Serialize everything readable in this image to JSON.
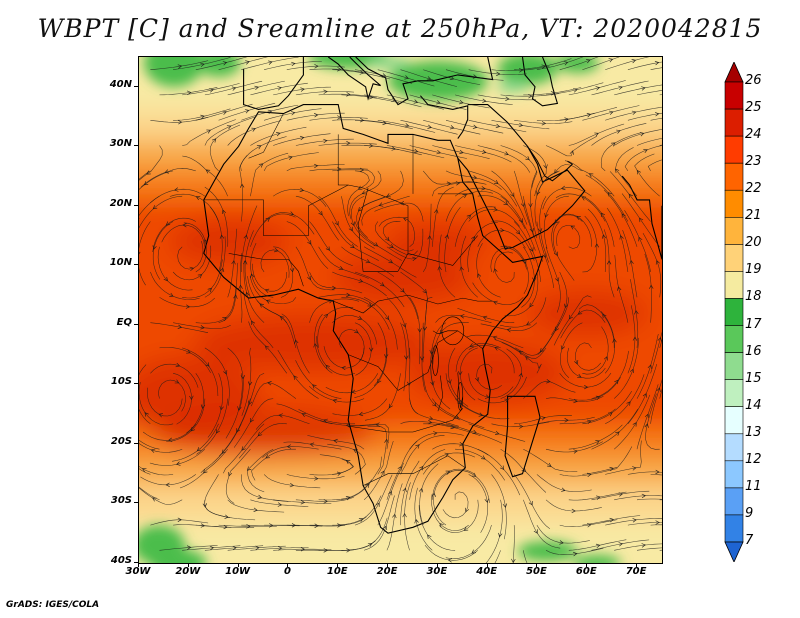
{
  "title": "WBPT [C] and Sreamline at 250hPa, VT: 2020042815",
  "footer": "GrADS: IGES/COLA",
  "axes": {
    "lat_labels": [
      "40N",
      "30N",
      "20N",
      "10N",
      "EQ",
      "10S",
      "20S",
      "30S",
      "40S"
    ],
    "lon_labels": [
      "30W",
      "20W",
      "10W",
      "0",
      "10E",
      "20E",
      "30E",
      "40E",
      "50E",
      "60E",
      "70E"
    ],
    "lat_range": [
      -40,
      45
    ],
    "lon_range": [
      -30,
      75
    ]
  },
  "colorbar": {
    "labels": [
      "26",
      "25",
      "24",
      "23",
      "22",
      "21",
      "20",
      "19",
      "18",
      "17",
      "16",
      "15",
      "14",
      "13",
      "12",
      "11",
      "9",
      "7"
    ],
    "colors": [
      "#a50000",
      "#c80000",
      "#dc1e00",
      "#ff3c00",
      "#ff6400",
      "#ff8c00",
      "#ffb43c",
      "#ffd278",
      "#f5eba0",
      "#2eb33c",
      "#5ac85a",
      "#8fdc8f",
      "#bff0bf",
      "#e6ffff",
      "#b4dcff",
      "#8cc8ff",
      "#5aa0f5",
      "#3282e6",
      "#1e64d2"
    ]
  },
  "field_colors": {
    "deep_red": "#d82800",
    "red": "#ee4a00",
    "orange": "#f57a14",
    "light_orange": "#f8a846",
    "yellow": "#fbd68c",
    "pale": "#f8eaa4",
    "green": "#4cbd4c",
    "light_green": "#8ad88a"
  }
}
